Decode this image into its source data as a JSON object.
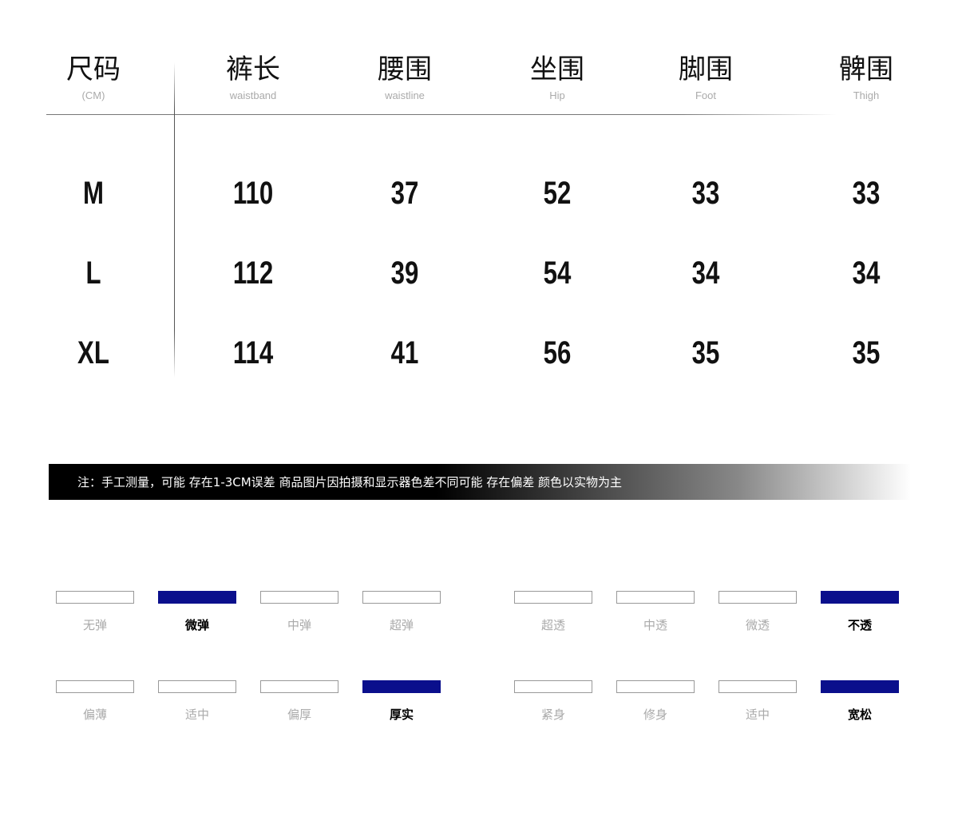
{
  "headers": [
    {
      "title": "尺码",
      "sub": "(CM)"
    },
    {
      "title": "裤长",
      "sub": "waistband"
    },
    {
      "title": "腰围",
      "sub": "waistline"
    },
    {
      "title": "坐围",
      "sub": "Hip"
    },
    {
      "title": "脚围",
      "sub": "Foot"
    },
    {
      "title": "髀围",
      "sub": "Thigh"
    }
  ],
  "rows": [
    [
      "M",
      "110",
      "37",
      "52",
      "33",
      "33"
    ],
    [
      "L",
      "112",
      "39",
      "54",
      "34",
      "34"
    ],
    [
      "XL",
      "114",
      "41",
      "56",
      "35",
      "35"
    ]
  ],
  "note": "注：手工测量，可能 存在1-3CM误差 商品图片因拍摄和显示器色差不同可能 存在偏差 颜色以实物为主",
  "accent_color": "#0a0f8c",
  "scales": [
    {
      "options": [
        "无弹",
        "微弹",
        "中弹",
        "超弹"
      ],
      "selected": 1
    },
    {
      "options": [
        "超透",
        "中透",
        "微透",
        "不透"
      ],
      "selected": 3
    },
    {
      "options": [
        "偏薄",
        "适中",
        "偏厚",
        "厚实"
      ],
      "selected": 3
    },
    {
      "options": [
        "紧身",
        "修身",
        "适中",
        "宽松"
      ],
      "selected": 3
    }
  ]
}
